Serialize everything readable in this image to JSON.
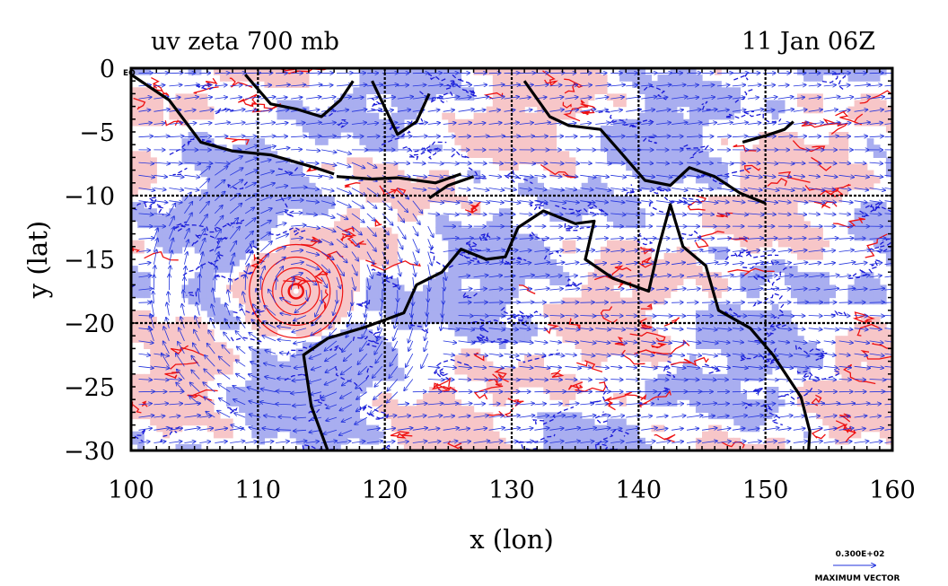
{
  "title_left": "uv zeta 700 mb",
  "title_right": "11 Jan 06Z",
  "corner_label": "EQ",
  "x_axis": {
    "label": "x (lon)",
    "ticks": [
      "100",
      "110",
      "120",
      "130",
      "140",
      "150",
      "160"
    ],
    "range": [
      100,
      160
    ]
  },
  "y_axis": {
    "label": "y (lat)",
    "ticks": [
      "0",
      "−5",
      "−10",
      "−15",
      "−20",
      "−25",
      "−30"
    ],
    "range": [
      -30,
      0
    ]
  },
  "vector_legend": {
    "value": "0.300E+02",
    "caption": "MAXIMUM VECTOR"
  },
  "colors": {
    "positive_fill": "#f7c6c8",
    "negative_fill": "#a9aef0",
    "positive_contour": "#ee1111",
    "negative_contour": "#1a1ad8",
    "vector": "#2233dd",
    "coastline": "#000000",
    "grid": "#000000"
  },
  "features": {
    "cyclone_center": {
      "lon": 113,
      "lat": -17.5
    }
  }
}
